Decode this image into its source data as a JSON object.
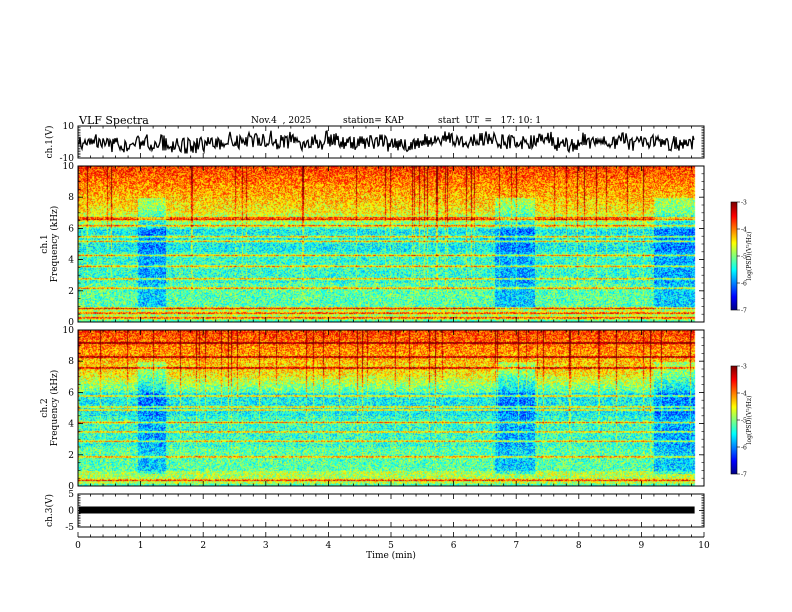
{
  "header": {
    "title": "VLF Spectra",
    "date": "Nov.4  , 2025",
    "station": "station= KAP",
    "start": "start  UT  =   17: 10: 1"
  },
  "chart_data": [
    {
      "type": "line",
      "name": "ch1-waveform",
      "ylabel": "ch.1(V)",
      "ylim": [
        -10,
        10
      ],
      "yticks": [
        "10",
        "-10"
      ],
      "xlim": [
        0,
        9.85
      ],
      "series_desc": "noisy waveform fluctuating roughly between -8 and +8 V"
    },
    {
      "type": "heatmap",
      "name": "ch1-spectrogram",
      "ylabel": "ch.1\nFrequency (kHz)",
      "ylim": [
        0,
        10
      ],
      "yticks": [
        "0",
        "2",
        "4",
        "6",
        "8",
        "10"
      ],
      "xlim": [
        0,
        9.85
      ],
      "colorbar": {
        "label": "log(PSD)(V²/Hz)",
        "ticks": [
          "-3",
          "-4",
          "-5",
          "-6",
          "-7"
        ],
        "range": [
          -7,
          -3
        ]
      },
      "quiet_segments_min": [
        [
          0.95,
          1.4
        ],
        [
          6.65,
          7.3
        ],
        [
          9.2,
          9.85
        ]
      ],
      "bands_khz": [
        0.3,
        0.6,
        0.9,
        2.2,
        2.8,
        3.6,
        4.3,
        5.2,
        5.5,
        6.2,
        6.6,
        6.7
      ]
    },
    {
      "type": "heatmap",
      "name": "ch2-spectrogram",
      "ylabel": "ch.2\nFrequency (kHz)",
      "ylim": [
        0,
        10
      ],
      "yticks": [
        "0",
        "2",
        "4",
        "6",
        "8",
        "10"
      ],
      "xlim": [
        0,
        9.85
      ],
      "colorbar": {
        "label": "log(PSD)(V²/Hz)",
        "ticks": [
          "-3",
          "-4",
          "-5",
          "-6",
          "-7"
        ],
        "range": [
          -7,
          -3
        ]
      },
      "quiet_segments_min": [
        [
          0.95,
          1.4
        ],
        [
          6.65,
          7.3
        ],
        [
          9.2,
          9.85
        ]
      ],
      "bands_khz": [
        0.4,
        1.9,
        2.9,
        3.5,
        4.1,
        4.9,
        5.1,
        5.8,
        7.6,
        8.3,
        9.2
      ]
    },
    {
      "type": "line",
      "name": "ch3-waveform",
      "ylabel": "ch.3(V)",
      "ylim": [
        -5,
        5
      ],
      "yticks": [
        "5",
        "0",
        "-5"
      ],
      "level_v": 0
    }
  ],
  "xaxis": {
    "label": "Time  (min)",
    "ticks": [
      "0",
      "1",
      "2",
      "3",
      "4",
      "5",
      "6",
      "7",
      "8",
      "9",
      "10"
    ],
    "range": [
      0,
      10
    ]
  }
}
